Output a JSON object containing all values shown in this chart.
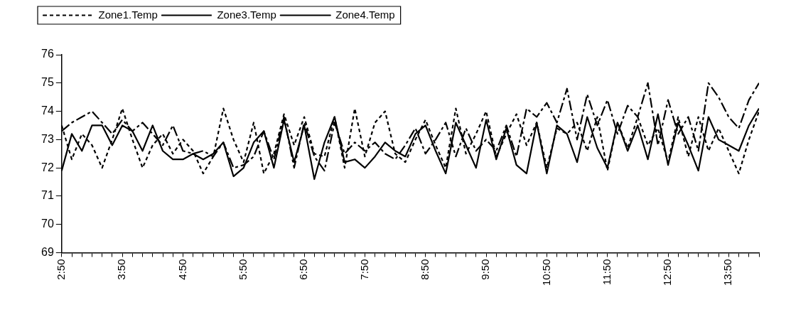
{
  "chart_data": {
    "type": "line",
    "legend": "top",
    "grid": false,
    "marker": "none",
    "x": [
      2.8333,
      3,
      3.1667,
      3.3333,
      3.5,
      3.6667,
      3.8333,
      4,
      4.1667,
      4.3333,
      4.5,
      4.6667,
      4.8333,
      5,
      5.1667,
      5.3333,
      5.5,
      5.6667,
      5.8333,
      6,
      6.1667,
      6.3333,
      6.5,
      6.6667,
      6.8333,
      7,
      7.1667,
      7.3333,
      7.5,
      7.6667,
      7.8333,
      8,
      8.1667,
      8.3333,
      8.5,
      8.6667,
      8.8333,
      9,
      9.1667,
      9.3333,
      9.5,
      9.6667,
      9.8333,
      10,
      10.1667,
      10.3333,
      10.5,
      10.6667,
      10.8333,
      11,
      11.1667,
      11.3333,
      11.5,
      11.6667,
      11.8333,
      12,
      12.1667,
      12.3333,
      12.5,
      12.6667,
      12.8333,
      13,
      13.1667,
      13.3333,
      13.5,
      13.6667,
      13.8333,
      14,
      14.1667,
      14.3333
    ],
    "xlim": [
      2.8333,
      14.3333
    ],
    "xticks": [
      {
        "value": 2.8333,
        "label": "2:50"
      },
      {
        "value": 3,
        "label": null
      },
      {
        "value": 3.1667,
        "label": null
      },
      {
        "value": 3.3333,
        "label": null
      },
      {
        "value": 3.5,
        "label": null
      },
      {
        "value": 3.6667,
        "label": null
      },
      {
        "value": 3.8333,
        "label": "3:50"
      },
      {
        "value": 4,
        "label": null
      },
      {
        "value": 4.1667,
        "label": null
      },
      {
        "value": 4.3333,
        "label": null
      },
      {
        "value": 4.5,
        "label": null
      },
      {
        "value": 4.6667,
        "label": null
      },
      {
        "value": 4.8333,
        "label": "4:50"
      },
      {
        "value": 5,
        "label": null
      },
      {
        "value": 5.1667,
        "label": null
      },
      {
        "value": 5.3333,
        "label": null
      },
      {
        "value": 5.5,
        "label": null
      },
      {
        "value": 5.6667,
        "label": null
      },
      {
        "value": 5.8333,
        "label": "5:50"
      },
      {
        "value": 6,
        "label": null
      },
      {
        "value": 6.1667,
        "label": null
      },
      {
        "value": 6.3333,
        "label": null
      },
      {
        "value": 6.5,
        "label": null
      },
      {
        "value": 6.6667,
        "label": null
      },
      {
        "value": 6.8333,
        "label": "6:50"
      },
      {
        "value": 7,
        "label": null
      },
      {
        "value": 7.1667,
        "label": null
      },
      {
        "value": 7.3333,
        "label": null
      },
      {
        "value": 7.5,
        "label": null
      },
      {
        "value": 7.6667,
        "label": null
      },
      {
        "value": 7.8333,
        "label": "7:50"
      },
      {
        "value": 8,
        "label": null
      },
      {
        "value": 8.1667,
        "label": null
      },
      {
        "value": 8.3333,
        "label": null
      },
      {
        "value": 8.5,
        "label": null
      },
      {
        "value": 8.6667,
        "label": null
      },
      {
        "value": 8.8333,
        "label": "8:50"
      },
      {
        "value": 9,
        "label": null
      },
      {
        "value": 9.1667,
        "label": null
      },
      {
        "value": 9.3333,
        "label": null
      },
      {
        "value": 9.5,
        "label": null
      },
      {
        "value": 9.6667,
        "label": null
      },
      {
        "value": 9.8333,
        "label": "9:50"
      },
      {
        "value": 10,
        "label": null
      },
      {
        "value": 10.1667,
        "label": null
      },
      {
        "value": 10.3333,
        "label": null
      },
      {
        "value": 10.5,
        "label": null
      },
      {
        "value": 10.6667,
        "label": null
      },
      {
        "value": 10.8333,
        "label": "10:50"
      },
      {
        "value": 11,
        "label": null
      },
      {
        "value": 11.1667,
        "label": null
      },
      {
        "value": 11.3333,
        "label": null
      },
      {
        "value": 11.5,
        "label": null
      },
      {
        "value": 11.6667,
        "label": null
      },
      {
        "value": 11.8333,
        "label": "11:50"
      },
      {
        "value": 12,
        "label": null
      },
      {
        "value": 12.1667,
        "label": null
      },
      {
        "value": 12.3333,
        "label": null
      },
      {
        "value": 12.5,
        "label": null
      },
      {
        "value": 12.6667,
        "label": null
      },
      {
        "value": 12.8333,
        "label": "12:50"
      },
      {
        "value": 13,
        "label": null
      },
      {
        "value": 13.1667,
        "label": null
      },
      {
        "value": 13.3333,
        "label": null
      },
      {
        "value": 13.5,
        "label": null
      },
      {
        "value": 13.6667,
        "label": null
      },
      {
        "value": 13.8333,
        "label": "13:50"
      },
      {
        "value": 14,
        "label": null
      },
      {
        "value": 14.1667,
        "label": null
      },
      {
        "value": 14.3333,
        "label": null
      }
    ],
    "ylim": [
      69,
      76
    ],
    "yticks": [
      69,
      70,
      71,
      72,
      73,
      74,
      75,
      76
    ],
    "series": [
      {
        "name": "Zone1.Temp",
        "color": "#000000",
        "line_style": "dotted",
        "values": [
          73.5,
          72.3,
          73.2,
          72.8,
          72.0,
          73.0,
          74.1,
          73.0,
          72.0,
          72.8,
          73.2,
          72.5,
          73.0,
          72.6,
          71.8,
          72.4,
          74.1,
          73.0,
          72.2,
          73.6,
          71.8,
          72.5,
          73.9,
          72.8,
          73.8,
          72.5,
          72.4,
          73.8,
          72.0,
          74.1,
          72.4,
          73.6,
          74.0,
          72.5,
          72.2,
          73.0,
          73.7,
          72.8,
          72.0,
          74.1,
          72.5,
          73.2,
          74.0,
          72.4,
          73.2,
          73.9,
          72.8,
          73.6,
          72.0,
          73.4,
          73.2,
          73.6,
          72.6,
          73.8,
          71.9,
          73.6,
          72.7,
          73.8,
          72.8,
          73.4,
          72.2,
          73.8,
          72.4,
          73.8,
          72.6,
          73.4,
          72.6,
          71.8,
          73.0,
          74.0
        ]
      },
      {
        "name": "Zone3.Temp",
        "color": "#000000",
        "line_style": "dashed",
        "values": [
          73.3,
          73.6,
          73.8,
          74.0,
          73.6,
          73.2,
          73.7,
          73.3,
          73.6,
          73.2,
          72.8,
          73.5,
          72.6,
          72.5,
          72.6,
          72.4,
          72.9,
          72.0,
          72.1,
          72.4,
          73.3,
          72.3,
          73.8,
          72.0,
          73.6,
          72.4,
          71.9,
          73.6,
          72.5,
          72.9,
          72.6,
          72.9,
          72.5,
          72.3,
          72.8,
          73.4,
          72.5,
          73.0,
          73.6,
          72.4,
          73.4,
          72.6,
          73.0,
          72.6,
          73.5,
          72.4,
          74.1,
          73.8,
          74.3,
          73.6,
          74.8,
          73.0,
          74.6,
          73.5,
          74.4,
          73.2,
          74.2,
          73.8,
          75.0,
          72.8,
          74.4,
          73.2,
          73.8,
          72.6,
          75.0,
          74.5,
          73.8,
          73.4,
          74.4,
          75.0
        ]
      },
      {
        "name": "Zone4.Temp",
        "color": "#000000",
        "line_style": "solid",
        "values": [
          71.9,
          73.2,
          72.6,
          73.5,
          73.5,
          72.8,
          73.5,
          73.3,
          72.6,
          73.5,
          72.6,
          72.3,
          72.3,
          72.5,
          72.3,
          72.5,
          72.9,
          71.7,
          72.0,
          72.9,
          73.3,
          72.0,
          73.7,
          72.2,
          73.5,
          71.6,
          72.9,
          73.8,
          72.2,
          72.3,
          72.0,
          72.4,
          72.9,
          72.6,
          72.4,
          73.2,
          73.5,
          72.6,
          71.8,
          73.6,
          72.8,
          72.0,
          73.7,
          72.3,
          73.4,
          72.1,
          71.8,
          73.6,
          71.8,
          73.5,
          73.2,
          72.2,
          73.8,
          72.7,
          72.0,
          73.6,
          72.6,
          73.5,
          72.3,
          73.9,
          72.1,
          73.6,
          72.8,
          71.9,
          73.8,
          73.0,
          72.8,
          72.6,
          73.5,
          74.1
        ]
      }
    ]
  }
}
